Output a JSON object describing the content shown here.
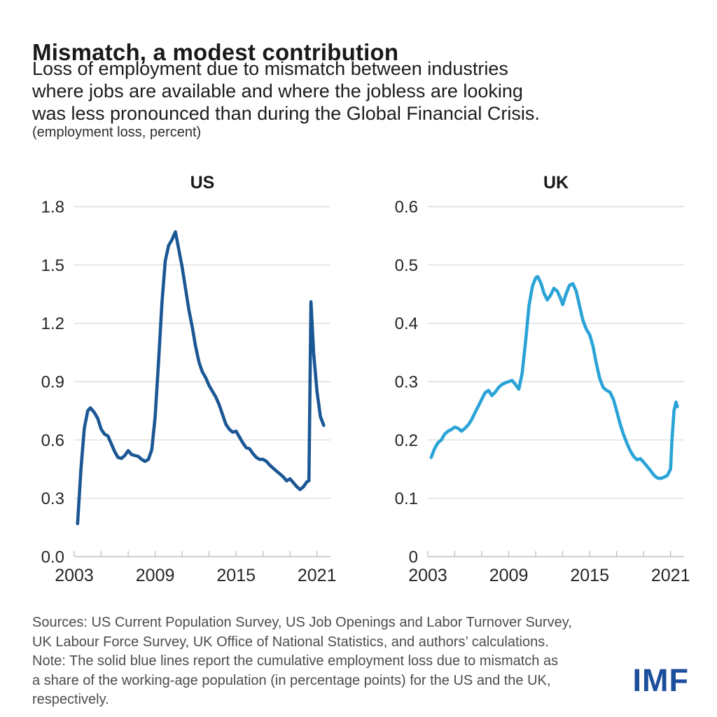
{
  "header": {
    "title": "Mismatch, a modest contribution",
    "subtitle_lines": [
      "Loss of employment due to mismatch between industries",
      "where jobs are available and where the jobless are looking",
      "was less pronounced than during the Global Financial Crisis."
    ],
    "units_label": "(employment loss, percent)"
  },
  "footer": {
    "lines": [
      "Sources: US Current Population Survey, US Job Openings and Labor Turnover Survey,",
      "UK Labour Force Survey, UK Office of National Statistics, and authors’ calculations.",
      "Note: The solid blue lines report the cumulative employment loss due to mismatch as",
      "a share of the working-age population (in percentage points) for the US and the UK,",
      "respectively."
    ]
  },
  "branding": {
    "logo_text": "IMF",
    "logo_color": "#1b4f9c"
  },
  "style_colors": {
    "us_line": "#1b5795",
    "uk_line": "#2aa3d7",
    "gridline": "#dedede",
    "baseline": "#c2c2c2",
    "axis_text": "#262626"
  },
  "chart_data": [
    {
      "type": "line",
      "title": "US",
      "series_name": "US cumulative employment loss due to mismatch (percentage points of working-age population)",
      "color": "#1b5795",
      "ylim": [
        0,
        1.8
      ],
      "yticks": [
        0,
        0.3,
        0.6,
        0.9,
        1.2,
        1.5,
        1.8
      ],
      "ytick_labels": [
        "0.0",
        "0.3",
        "0.6",
        "0.9",
        "1.2",
        "1.5",
        "1.8"
      ],
      "xlim": [
        2003,
        2022
      ],
      "xticks_minor": [
        2003,
        2005,
        2007,
        2009,
        2011,
        2013,
        2015,
        2017,
        2019,
        2021
      ],
      "xtick_labeled": [
        2003,
        2009,
        2015,
        2021
      ],
      "xtick_labels": [
        "2003",
        "2009",
        "2015",
        "2021"
      ],
      "grid": "horizontal",
      "legend": "none",
      "points": [
        [
          2003.25,
          0.17
        ],
        [
          2003.5,
          0.45
        ],
        [
          2003.75,
          0.66
        ],
        [
          2004.0,
          0.75
        ],
        [
          2004.2,
          0.765
        ],
        [
          2004.5,
          0.74
        ],
        [
          2004.75,
          0.71
        ],
        [
          2005.0,
          0.655
        ],
        [
          2005.25,
          0.63
        ],
        [
          2005.5,
          0.62
        ],
        [
          2005.75,
          0.58
        ],
        [
          2006.0,
          0.54
        ],
        [
          2006.25,
          0.51
        ],
        [
          2006.5,
          0.505
        ],
        [
          2006.75,
          0.52
        ],
        [
          2007.0,
          0.545
        ],
        [
          2007.25,
          0.525
        ],
        [
          2007.5,
          0.52
        ],
        [
          2007.75,
          0.515
        ],
        [
          2008.0,
          0.5
        ],
        [
          2008.25,
          0.49
        ],
        [
          2008.5,
          0.5
        ],
        [
          2008.75,
          0.55
        ],
        [
          2009.0,
          0.72
        ],
        [
          2009.25,
          1.0
        ],
        [
          2009.5,
          1.3
        ],
        [
          2009.75,
          1.52
        ],
        [
          2010.0,
          1.6
        ],
        [
          2010.25,
          1.63
        ],
        [
          2010.5,
          1.67
        ],
        [
          2010.75,
          1.58
        ],
        [
          2011.0,
          1.49
        ],
        [
          2011.25,
          1.38
        ],
        [
          2011.5,
          1.27
        ],
        [
          2011.75,
          1.18
        ],
        [
          2012.0,
          1.08
        ],
        [
          2012.25,
          1.0
        ],
        [
          2012.5,
          0.95
        ],
        [
          2012.75,
          0.92
        ],
        [
          2013.0,
          0.88
        ],
        [
          2013.25,
          0.85
        ],
        [
          2013.5,
          0.82
        ],
        [
          2013.75,
          0.78
        ],
        [
          2014.0,
          0.73
        ],
        [
          2014.25,
          0.68
        ],
        [
          2014.5,
          0.655
        ],
        [
          2014.75,
          0.64
        ],
        [
          2015.0,
          0.645
        ],
        [
          2015.25,
          0.615
        ],
        [
          2015.5,
          0.585
        ],
        [
          2015.75,
          0.56
        ],
        [
          2016.0,
          0.555
        ],
        [
          2016.25,
          0.53
        ],
        [
          2016.5,
          0.51
        ],
        [
          2016.75,
          0.5
        ],
        [
          2017.0,
          0.5
        ],
        [
          2017.25,
          0.49
        ],
        [
          2017.5,
          0.47
        ],
        [
          2017.75,
          0.455
        ],
        [
          2018.0,
          0.44
        ],
        [
          2018.25,
          0.425
        ],
        [
          2018.5,
          0.41
        ],
        [
          2018.75,
          0.39
        ],
        [
          2019.0,
          0.4
        ],
        [
          2019.25,
          0.38
        ],
        [
          2019.5,
          0.36
        ],
        [
          2019.75,
          0.345
        ],
        [
          2020.0,
          0.36
        ],
        [
          2020.25,
          0.385
        ],
        [
          2020.4,
          0.39
        ],
        [
          2020.55,
          1.31
        ],
        [
          2020.75,
          1.05
        ],
        [
          2021.0,
          0.85
        ],
        [
          2021.25,
          0.72
        ],
        [
          2021.5,
          0.675
        ]
      ]
    },
    {
      "type": "line",
      "title": "UK",
      "series_name": "UK cumulative employment loss due to mismatch (percentage points of working-age population)",
      "color": "#2aa3d7",
      "ylim": [
        0,
        0.6
      ],
      "yticks": [
        0,
        0.1,
        0.2,
        0.3,
        0.4,
        0.5,
        0.6
      ],
      "ytick_labels": [
        "0",
        "0.1",
        "0.2",
        "0.3",
        "0.4",
        "0.5",
        "0.6"
      ],
      "xlim": [
        2003,
        2022
      ],
      "xticks_minor": [
        2003,
        2005,
        2007,
        2009,
        2011,
        2013,
        2015,
        2017,
        2019,
        2021
      ],
      "xtick_labeled": [
        2003,
        2009,
        2015,
        2021
      ],
      "xtick_labels": [
        "2003",
        "2009",
        "2015",
        "2021"
      ],
      "grid": "horizontal",
      "legend": "none",
      "points": [
        [
          2003.25,
          0.17
        ],
        [
          2003.5,
          0.185
        ],
        [
          2003.75,
          0.195
        ],
        [
          2004.0,
          0.2
        ],
        [
          2004.25,
          0.21
        ],
        [
          2004.5,
          0.215
        ],
        [
          2004.75,
          0.218
        ],
        [
          2005.0,
          0.222
        ],
        [
          2005.25,
          0.22
        ],
        [
          2005.5,
          0.215
        ],
        [
          2005.75,
          0.22
        ],
        [
          2006.0,
          0.226
        ],
        [
          2006.25,
          0.235
        ],
        [
          2006.5,
          0.247
        ],
        [
          2006.75,
          0.258
        ],
        [
          2007.0,
          0.27
        ],
        [
          2007.25,
          0.281
        ],
        [
          2007.5,
          0.285
        ],
        [
          2007.75,
          0.276
        ],
        [
          2008.0,
          0.282
        ],
        [
          2008.25,
          0.29
        ],
        [
          2008.5,
          0.295
        ],
        [
          2008.75,
          0.298
        ],
        [
          2009.0,
          0.3
        ],
        [
          2009.25,
          0.302
        ],
        [
          2009.5,
          0.295
        ],
        [
          2009.75,
          0.287
        ],
        [
          2010.0,
          0.315
        ],
        [
          2010.25,
          0.37
        ],
        [
          2010.5,
          0.43
        ],
        [
          2010.75,
          0.463
        ],
        [
          2011.0,
          0.478
        ],
        [
          2011.15,
          0.48
        ],
        [
          2011.4,
          0.468
        ],
        [
          2011.6,
          0.452
        ],
        [
          2011.85,
          0.44
        ],
        [
          2012.1,
          0.448
        ],
        [
          2012.35,
          0.46
        ],
        [
          2012.6,
          0.455
        ],
        [
          2012.85,
          0.442
        ],
        [
          2013.0,
          0.432
        ],
        [
          2013.25,
          0.45
        ],
        [
          2013.5,
          0.465
        ],
        [
          2013.75,
          0.468
        ],
        [
          2014.0,
          0.455
        ],
        [
          2014.25,
          0.43
        ],
        [
          2014.5,
          0.405
        ],
        [
          2014.75,
          0.39
        ],
        [
          2015.0,
          0.38
        ],
        [
          2015.25,
          0.36
        ],
        [
          2015.5,
          0.33
        ],
        [
          2015.75,
          0.305
        ],
        [
          2016.0,
          0.29
        ],
        [
          2016.25,
          0.285
        ],
        [
          2016.5,
          0.282
        ],
        [
          2016.75,
          0.27
        ],
        [
          2017.0,
          0.25
        ],
        [
          2017.25,
          0.228
        ],
        [
          2017.5,
          0.21
        ],
        [
          2017.75,
          0.195
        ],
        [
          2018.0,
          0.182
        ],
        [
          2018.25,
          0.172
        ],
        [
          2018.5,
          0.166
        ],
        [
          2018.75,
          0.168
        ],
        [
          2019.0,
          0.162
        ],
        [
          2019.25,
          0.155
        ],
        [
          2019.5,
          0.148
        ],
        [
          2019.75,
          0.14
        ],
        [
          2020.0,
          0.135
        ],
        [
          2020.25,
          0.134
        ],
        [
          2020.5,
          0.136
        ],
        [
          2020.75,
          0.139
        ],
        [
          2021.0,
          0.15
        ],
        [
          2021.1,
          0.2
        ],
        [
          2021.25,
          0.25
        ],
        [
          2021.4,
          0.265
        ],
        [
          2021.5,
          0.257
        ]
      ]
    }
  ]
}
